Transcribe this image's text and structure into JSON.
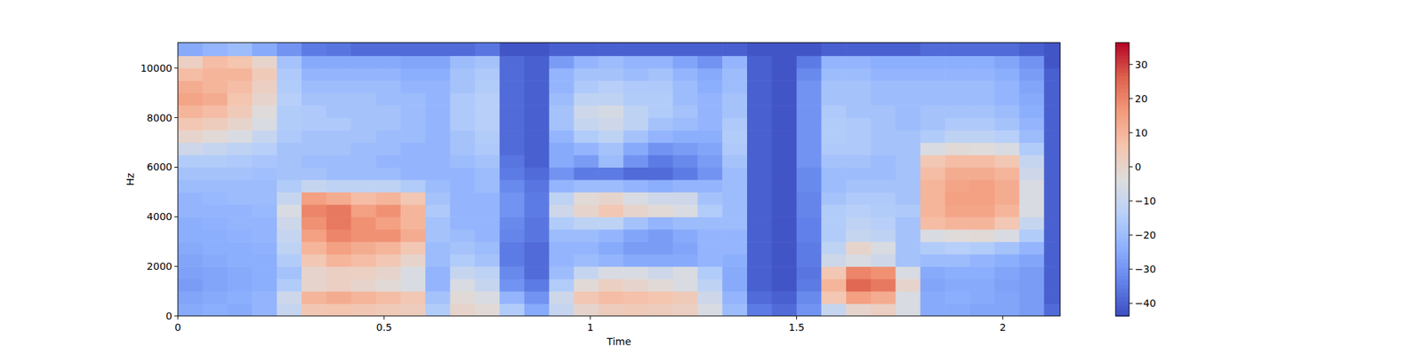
{
  "chart_data": {
    "type": "heatmap",
    "x_label": "Time",
    "y_label": "Hz",
    "xlim": [
      0,
      2.139
    ],
    "ylim": [
      0,
      11025
    ],
    "xticks": [
      0,
      0.5,
      1,
      1.5,
      2
    ],
    "yticks": [
      0,
      2000,
      4000,
      6000,
      8000,
      10000
    ],
    "x_bins": [
      0,
      0.06,
      0.12,
      0.18,
      0.24,
      0.3,
      0.36,
      0.42,
      0.48,
      0.54,
      0.6,
      0.66,
      0.72,
      0.78,
      0.84,
      0.9,
      0.96,
      1.02,
      1.08,
      1.14,
      1.2,
      1.26,
      1.32,
      1.38,
      1.44,
      1.5,
      1.56,
      1.62,
      1.68,
      1.74,
      1.8,
      1.86,
      1.92,
      1.98,
      2.04,
      2.1,
      2.16
    ],
    "y_bins": [
      0,
      500,
      1000,
      1500,
      2000,
      2500,
      3000,
      3500,
      4000,
      4500,
      5000,
      5500,
      6000,
      6500,
      7000,
      7500,
      8000,
      8500,
      9000,
      9500,
      10000,
      10500,
      11025
    ],
    "cells": [
      [
        -25,
        -24,
        -25,
        -22,
        -10,
        5,
        6,
        5,
        4,
        3,
        -15,
        0,
        -2,
        -15,
        -25,
        -10,
        0,
        3,
        4,
        3,
        2,
        -5,
        -20,
        -35,
        -38,
        -30,
        -10,
        0,
        2,
        -5,
        -25,
        -25,
        -26,
        -26,
        -28,
        -38
      ],
      [
        -26,
        -25,
        -24,
        -22,
        -8,
        10,
        12,
        10,
        8,
        5,
        -18,
        -2,
        -5,
        -22,
        -30,
        -8,
        5,
        8,
        7,
        6,
        4,
        -8,
        -22,
        -38,
        -40,
        -32,
        5,
        15,
        12,
        -5,
        -25,
        -24,
        -25,
        -26,
        -28,
        -40
      ],
      [
        -28,
        -26,
        -25,
        -24,
        -15,
        0,
        2,
        0,
        -2,
        -5,
        -22,
        -5,
        -10,
        -30,
        -35,
        -15,
        -2,
        2,
        0,
        -2,
        -5,
        -12,
        -25,
        -40,
        -42,
        -35,
        10,
        25,
        22,
        0,
        -26,
        -25,
        -25,
        -27,
        -28,
        -40
      ],
      [
        -27,
        -26,
        -25,
        -24,
        -18,
        0,
        2,
        2,
        0,
        -5,
        -22,
        -10,
        -12,
        -32,
        -38,
        -20,
        -10,
        -5,
        -5,
        -8,
        -5,
        -15,
        -25,
        -40,
        -42,
        -36,
        5,
        20,
        18,
        -5,
        -25,
        -24,
        -24,
        -26,
        -28,
        -40
      ],
      [
        -26,
        -25,
        -24,
        -24,
        -15,
        5,
        10,
        8,
        5,
        0,
        -20,
        -15,
        -18,
        -35,
        -38,
        -22,
        -20,
        -22,
        -25,
        -25,
        -25,
        -22,
        -24,
        -40,
        -42,
        -35,
        -8,
        -5,
        -8,
        -18,
        -20,
        -20,
        -22,
        -24,
        -26,
        -40
      ],
      [
        -25,
        -24,
        -24,
        -23,
        -12,
        10,
        15,
        12,
        10,
        5,
        -20,
        -18,
        -20,
        -35,
        -38,
        -22,
        -22,
        -25,
        -28,
        -28,
        -26,
        -22,
        -22,
        -40,
        -42,
        -35,
        -12,
        0,
        -5,
        -18,
        -15,
        -14,
        -15,
        -18,
        -22,
        -40
      ],
      [
        -24,
        -24,
        -23,
        -22,
        -10,
        15,
        20,
        18,
        18,
        12,
        -18,
        -20,
        -22,
        -33,
        -36,
        -20,
        -20,
        -22,
        -26,
        -28,
        -25,
        -22,
        -22,
        -40,
        -42,
        -34,
        -15,
        -10,
        -12,
        -18,
        -5,
        -3,
        -2,
        -5,
        -15,
        -40
      ],
      [
        -24,
        -23,
        -22,
        -22,
        -8,
        18,
        22,
        18,
        15,
        10,
        -18,
        -22,
        -22,
        -32,
        -36,
        -15,
        -12,
        -12,
        -18,
        -22,
        -20,
        -20,
        -20,
        -40,
        -42,
        -34,
        -15,
        -12,
        -14,
        -18,
        8,
        10,
        10,
        5,
        -10,
        -40
      ],
      [
        -22,
        -22,
        -22,
        -21,
        -5,
        20,
        22,
        15,
        18,
        10,
        -16,
        -22,
        -22,
        -30,
        -35,
        -8,
        0,
        5,
        0,
        -2,
        -5,
        -15,
        -20,
        -40,
        -42,
        -33,
        -15,
        -14,
        -15,
        -16,
        10,
        14,
        14,
        10,
        -5,
        -40
      ],
      [
        -22,
        -21,
        -20,
        -20,
        -10,
        15,
        12,
        8,
        10,
        5,
        -18,
        -22,
        -22,
        -30,
        -35,
        -12,
        -2,
        0,
        -5,
        -8,
        -8,
        -18,
        -20,
        -40,
        -42,
        -33,
        -18,
        -16,
        -16,
        -18,
        10,
        15,
        15,
        12,
        -5,
        -40
      ],
      [
        -20,
        -20,
        -20,
        -20,
        -15,
        -10,
        -12,
        -12,
        -12,
        -15,
        -20,
        -22,
        -20,
        -32,
        -36,
        -22,
        -20,
        -20,
        -22,
        -24,
        -22,
        -22,
        -20,
        -40,
        -42,
        -32,
        -20,
        -18,
        -18,
        -18,
        10,
        14,
        15,
        12,
        -5,
        -40
      ],
      [
        -18,
        -18,
        -18,
        -19,
        -18,
        -18,
        -20,
        -20,
        -20,
        -22,
        -22,
        -22,
        -20,
        -35,
        -38,
        -30,
        -35,
        -35,
        -38,
        -38,
        -35,
        -30,
        -20,
        -40,
        -42,
        -32,
        -20,
        -20,
        -20,
        -18,
        8,
        12,
        12,
        10,
        -8,
        -40
      ],
      [
        -15,
        -15,
        -16,
        -17,
        -18,
        -20,
        -20,
        -20,
        -22,
        -22,
        -22,
        -20,
        -18,
        -36,
        -40,
        -25,
        -28,
        -20,
        -30,
        -35,
        -32,
        -28,
        -18,
        -40,
        -42,
        -30,
        -18,
        -18,
        -20,
        -18,
        5,
        8,
        8,
        5,
        -10,
        -40
      ],
      [
        -8,
        -10,
        -12,
        -14,
        -18,
        -18,
        -18,
        -20,
        -20,
        -22,
        -22,
        -18,
        -16,
        -38,
        -40,
        -25,
        -22,
        -18,
        -25,
        -30,
        -28,
        -26,
        -16,
        -40,
        -42,
        -30,
        -16,
        -16,
        -18,
        -18,
        -5,
        -2,
        -3,
        -5,
        -15,
        -40
      ],
      [
        0,
        -2,
        -5,
        -10,
        -16,
        -18,
        -18,
        -18,
        -20,
        -20,
        -22,
        -18,
        -15,
        -38,
        -40,
        -22,
        -15,
        -12,
        -18,
        -22,
        -24,
        -24,
        -15,
        -40,
        -42,
        -30,
        -15,
        -16,
        -18,
        -18,
        -15,
        -12,
        -12,
        -14,
        -20,
        -40
      ],
      [
        5,
        3,
        0,
        -5,
        -15,
        -16,
        -16,
        -18,
        -18,
        -20,
        -22,
        -16,
        -14,
        -38,
        -40,
        -18,
        -10,
        -8,
        -12,
        -18,
        -20,
        -22,
        -16,
        -40,
        -42,
        -30,
        -15,
        -16,
        -18,
        -20,
        -18,
        -16,
        -16,
        -18,
        -22,
        -40
      ],
      [
        10,
        8,
        4,
        -3,
        -15,
        -16,
        -18,
        -18,
        -18,
        -20,
        -22,
        -16,
        -14,
        -38,
        -40,
        -18,
        -8,
        -6,
        -12,
        -15,
        -18,
        -22,
        -18,
        -40,
        -42,
        -30,
        -16,
        -18,
        -18,
        -20,
        -18,
        -18,
        -18,
        -20,
        -24,
        -40
      ],
      [
        14,
        12,
        6,
        0,
        -14,
        -18,
        -18,
        -18,
        -20,
        -20,
        -22,
        -16,
        -14,
        -38,
        -40,
        -20,
        -12,
        -12,
        -15,
        -15,
        -20,
        -22,
        -18,
        -40,
        -42,
        -30,
        -18,
        -18,
        -20,
        -20,
        -20,
        -20,
        -20,
        -22,
        -25,
        -40
      ],
      [
        12,
        10,
        8,
        2,
        -15,
        -20,
        -20,
        -20,
        -20,
        -22,
        -22,
        -18,
        -15,
        -38,
        -40,
        -22,
        -16,
        -14,
        -16,
        -16,
        -20,
        -24,
        -20,
        -40,
        -42,
        -30,
        -18,
        -18,
        -20,
        -20,
        -20,
        -20,
        -20,
        -22,
        -26,
        -40
      ],
      [
        8,
        10,
        10,
        4,
        -16,
        -22,
        -22,
        -22,
        -22,
        -24,
        -24,
        -18,
        -16,
        -38,
        -40,
        -22,
        -18,
        -18,
        -20,
        -18,
        -22,
        -25,
        -20,
        -40,
        -42,
        -32,
        -20,
        -20,
        -22,
        -22,
        -22,
        -22,
        -22,
        -24,
        -28,
        -40
      ],
      [
        2,
        8,
        6,
        0,
        -18,
        -25,
        -25,
        -25,
        -25,
        -26,
        -26,
        -20,
        -18,
        -38,
        -40,
        -28,
        -22,
        -20,
        -22,
        -22,
        -26,
        -30,
        -22,
        -40,
        -42,
        -35,
        -22,
        -22,
        -24,
        -24,
        -24,
        -24,
        -24,
        -26,
        -30,
        -42
      ],
      [
        -25,
        -22,
        -20,
        -25,
        -30,
        -35,
        -36,
        -38,
        -38,
        -38,
        -38,
        -38,
        -36,
        -42,
        -42,
        -40,
        -40,
        -40,
        -40,
        -40,
        -40,
        -40,
        -40,
        -42,
        -42,
        -42,
        -40,
        -40,
        -40,
        -40,
        -38,
        -38,
        -38,
        -38,
        -40,
        -42
      ]
    ],
    "colorbar_range": [
      -43.7,
      36.4
    ],
    "colorbar_ticks": [
      {
        "value": -40,
        "label": "−40"
      },
      {
        "value": -30,
        "label": "−30"
      },
      {
        "value": -20,
        "label": "−20"
      },
      {
        "value": -10,
        "label": "−10"
      },
      0,
      10,
      20,
      30
    ]
  }
}
